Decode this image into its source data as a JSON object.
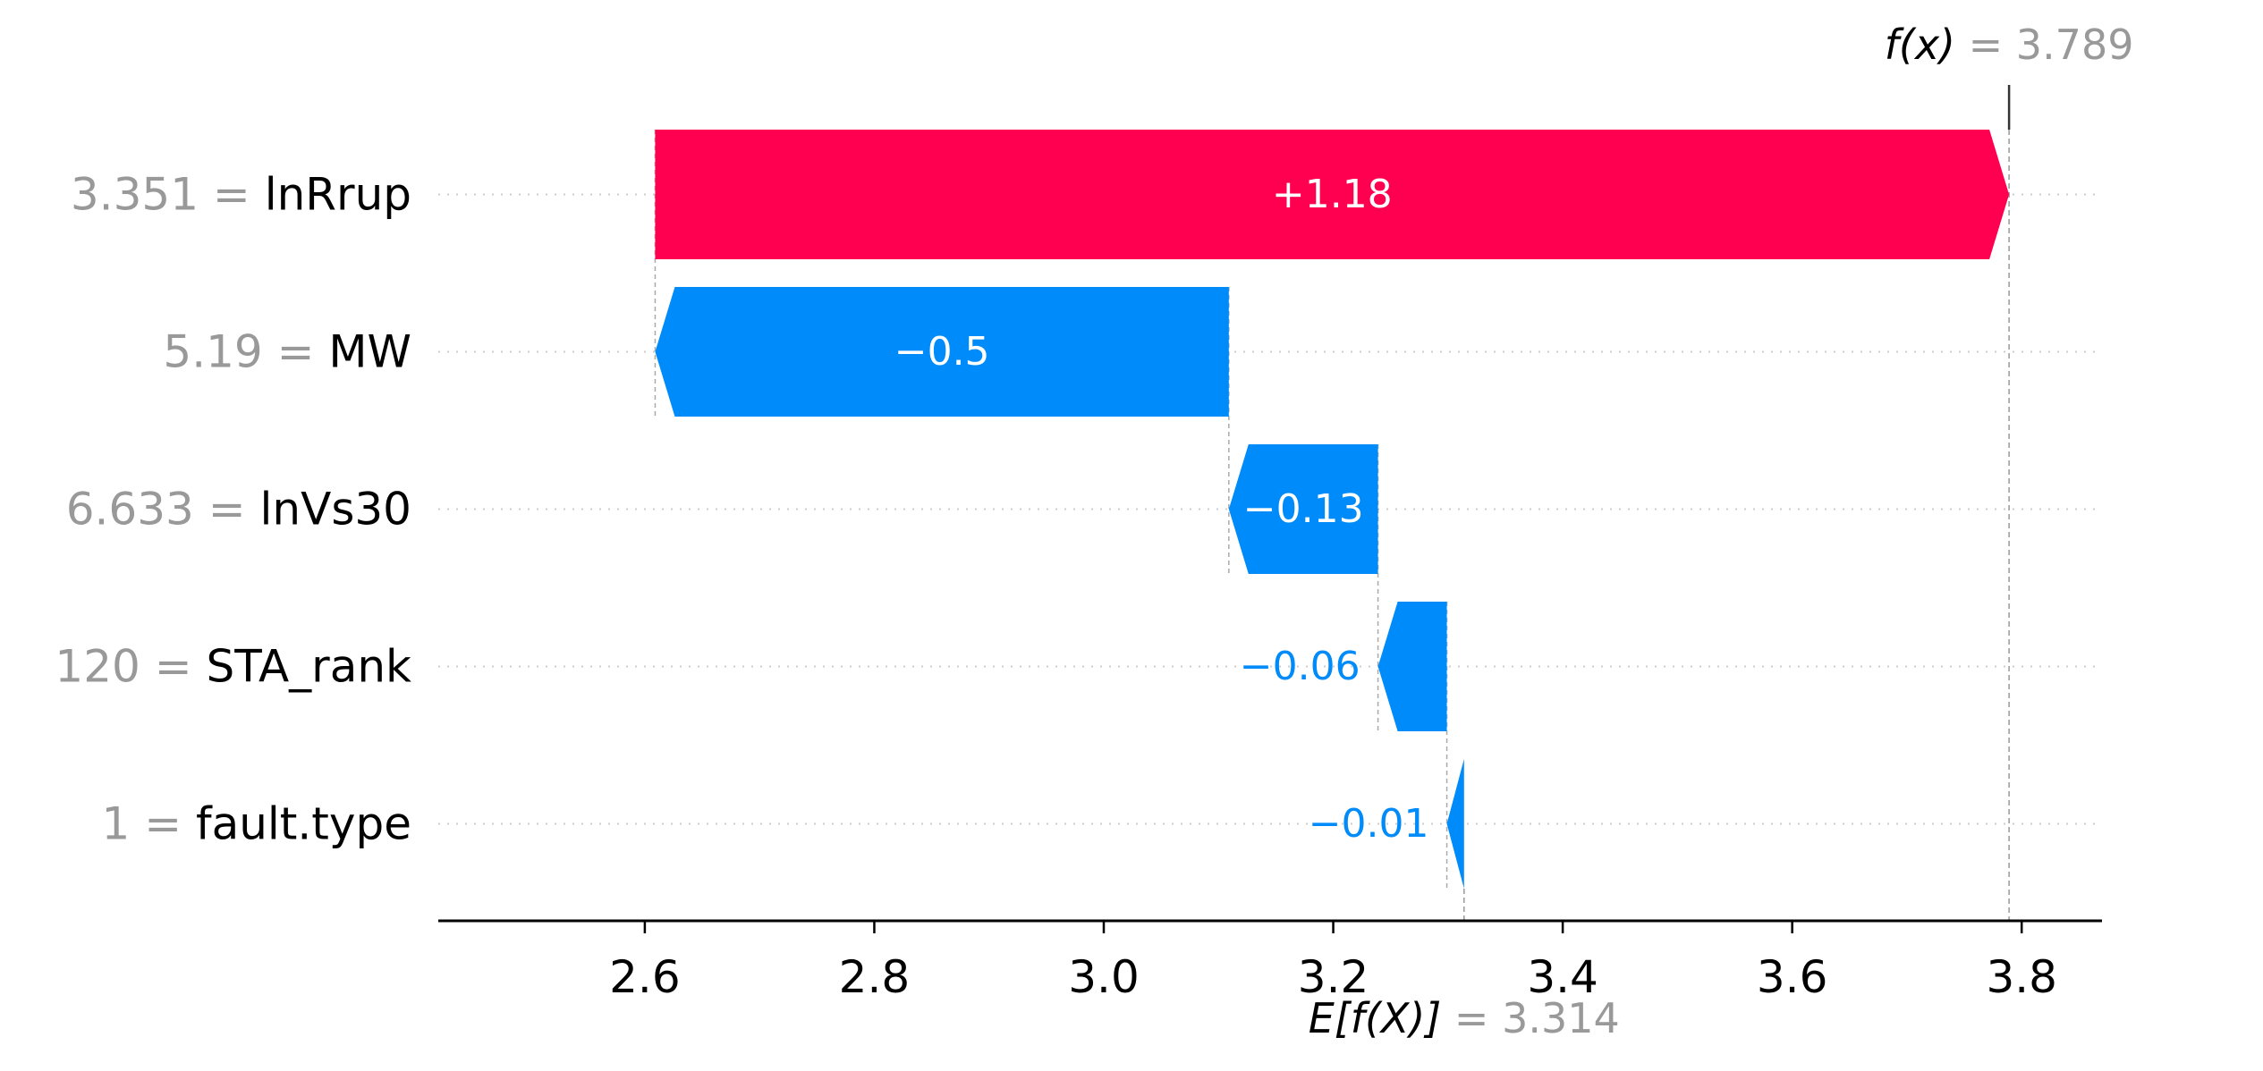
{
  "chart_data": {
    "type": "waterfall",
    "base_value": 3.314,
    "output_value": 3.789,
    "base_label": {
      "prefix": "E[f(X)]",
      "eq": " = ",
      "value": "3.314"
    },
    "output_label": {
      "prefix": "f(x)",
      "eq": " = ",
      "value": "3.789"
    },
    "xlim": [
      2.42,
      3.87
    ],
    "xticks": [
      2.6,
      2.8,
      3.0,
      3.2,
      3.4,
      3.6,
      3.8
    ],
    "xtick_labels": [
      "2.6",
      "2.8",
      "3.0",
      "3.2",
      "3.4",
      "3.6",
      "3.8"
    ],
    "features": [
      {
        "value": "3.351",
        "name": "lnRrup",
        "contribution": 1.18,
        "label": "+1.18",
        "start": 2.609,
        "end": 3.789
      },
      {
        "value": "5.19",
        "name": "MW",
        "contribution": -0.5,
        "label": "−0.5",
        "start": 3.109,
        "end": 2.609
      },
      {
        "value": "6.633",
        "name": "lnVs30",
        "contribution": -0.13,
        "label": "−0.13",
        "start": 3.239,
        "end": 3.109
      },
      {
        "value": "120",
        "name": "STA_rank",
        "contribution": -0.06,
        "label": "−0.06",
        "start": 3.299,
        "end": 3.239
      },
      {
        "value": "1",
        "name": "fault.type",
        "contribution": -0.01,
        "label": "−0.01",
        "start": 3.314,
        "end": 3.299
      }
    ],
    "colors": {
      "positive": "#ff0051",
      "negative": "#008bfb",
      "grid": "#cccccc",
      "muted": "#999999"
    }
  }
}
